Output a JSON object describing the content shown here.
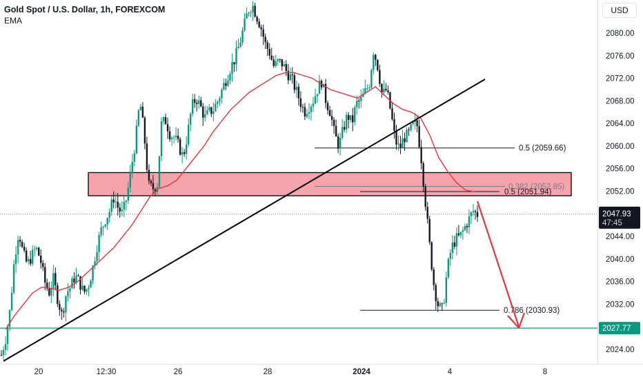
{
  "header": {
    "symbol_title": "Gold Spot / U.S. Dollar, 1h, FOREXCOM",
    "indicator": "EMA",
    "currency": "USD"
  },
  "colors": {
    "up": "#089981",
    "down": "#131722",
    "ema": "#e5353e",
    "zone_fill": "#f7a3ab",
    "trendline": "#000000",
    "support": "#089981",
    "arrow": "#e5353e",
    "price_label_bg": "#131722"
  },
  "chart_data": {
    "type": "candlestick",
    "y_axis": {
      "ticks": [
        "2080.00",
        "2076.00",
        "2072.00",
        "2068.00",
        "2064.00",
        "2060.00",
        "2056.00",
        "2052.00",
        "2048.00",
        "2044.00",
        "2040.00",
        "2036.00",
        "2032.00",
        "2028.00",
        "2024.00"
      ],
      "range": [
        2021.5,
        2085.5
      ]
    },
    "x_axis": {
      "tick_labels": [
        "20",
        "12:30",
        "26",
        "28",
        "2024",
        "4",
        "8"
      ],
      "bold_label": "2024"
    },
    "current_price": {
      "value": 2047.93,
      "text": "2047.93",
      "countdown": "47:45"
    },
    "support_level": {
      "value": 2027.77,
      "text": "2027.77"
    },
    "resistance_zone": {
      "low": 2051.2,
      "high": 2055.3
    },
    "fib_levels": [
      {
        "label": "0.5 (2059.66)",
        "price": 2059.66
      },
      {
        "label": "0.382 (2052.85)",
        "price": 2052.85
      },
      {
        "label": "0.5 (2051.94)",
        "price": 2051.94
      },
      {
        "label": "0.786 (2030.93)",
        "price": 2030.93
      }
    ],
    "price_path": [
      2023.0,
      2026.0,
      2031.0,
      2040.0,
      2045.0,
      2041.0,
      2039.0,
      2040.5,
      2042.0,
      2040.0,
      2036.0,
      2034.0,
      2036.5,
      2033.0,
      2030.0,
      2034.0,
      2035.0,
      2037.0,
      2036.0,
      2034.0,
      2035.0,
      2038.0,
      2042.0,
      2045.0,
      2047.0,
      2048.5,
      2051.0,
      2049.0,
      2048.0,
      2051.0,
      2056.0,
      2061.0,
      2068.0,
      2062.0,
      2053.0,
      2052.5,
      2053.0,
      2064.0,
      2064.5,
      2062.0,
      2061.5,
      2060.0,
      2058.0,
      2062.0,
      2067.0,
      2068.5,
      2067.0,
      2065.0,
      2066.0,
      2066.5,
      2068.0,
      2070.0,
      2072.0,
      2074.0,
      2075.5,
      2078.0,
      2081.0,
      2084.0,
      2085.0,
      2083.0,
      2081.0,
      2078.0,
      2076.5,
      2074.0,
      2075.0,
      2074.5,
      2073.0,
      2072.0,
      2070.0,
      2068.0,
      2066.0,
      2067.0,
      2068.0,
      2070.0,
      2071.5,
      2068.0,
      2066.0,
      2062.0,
      2060.0,
      2063.0,
      2065.5,
      2064.0,
      2067.5,
      2068.0,
      2069.5,
      2071.0,
      2077.0,
      2074.0,
      2069.0,
      2070.0,
      2066.0,
      2061.0,
      2059.5,
      2061.5,
      2062.0,
      2063.5,
      2064.0,
      2058.0,
      2050.0,
      2042.0,
      2035.0,
      2031.5,
      2031.0,
      2038.0,
      2042.0,
      2043.5,
      2044.0,
      2045.5,
      2047.0,
      2048.5,
      2047.9
    ],
    "ema_path": [
      2027.5,
      2030.0,
      2032.0,
      2034.0,
      2035.0,
      2034.8,
      2034.5,
      2035.0,
      2036.0,
      2037.5,
      2039.0,
      2040.5,
      2042.0,
      2044.0,
      2046.0,
      2048.5,
      2051.0,
      2052.5,
      2053.0,
      2054.0,
      2056.0,
      2058.0,
      2060.0,
      2062.5,
      2064.5,
      2066.5,
      2068.0,
      2069.5,
      2070.5,
      2071.5,
      2072.5,
      2073.0,
      2073.0,
      2072.5,
      2072.0,
      2071.0,
      2070.0,
      2069.5,
      2069.0,
      2068.5,
      2069.5,
      2070.5,
      2069.0,
      2067.5,
      2066.5,
      2066.0,
      2065.0,
      2062.0,
      2058.0,
      2055.5,
      2053.5,
      2052.2,
      2051.9
    ]
  }
}
